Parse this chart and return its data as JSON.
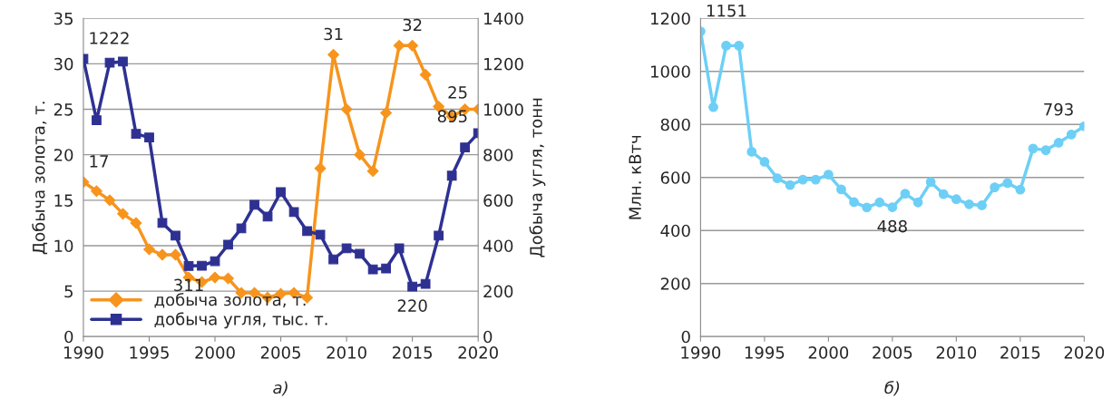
{
  "chart_data": [
    {
      "type": "line",
      "x": [
        1990,
        1991,
        1992,
        1993,
        1994,
        1995,
        1996,
        1997,
        1998,
        1999,
        2000,
        2001,
        2002,
        2003,
        2004,
        2005,
        2006,
        2007,
        2008,
        2009,
        2010,
        2011,
        2012,
        2013,
        2014,
        2015,
        2016,
        2017,
        2018,
        2019,
        2020
      ],
      "series": [
        {
          "name": "добыча золота, т.",
          "color": "#f7941d",
          "marker": "diamond",
          "values": [
            17,
            16,
            15,
            13.5,
            12.5,
            9.6,
            9,
            9,
            6.5,
            6,
            6.5,
            6.4,
            4.8,
            4.8,
            4.3,
            4.7,
            4.8,
            4.3,
            18.5,
            31,
            25,
            20,
            18.2,
            24.6,
            32,
            32,
            28.8,
            25.3,
            24.2,
            25,
            25
          ],
          "value_labels": [
            "17",
            null,
            null,
            null,
            null,
            null,
            null,
            null,
            null,
            null,
            null,
            null,
            null,
            null,
            null,
            null,
            null,
            null,
            null,
            "31",
            null,
            null,
            null,
            null,
            null,
            "32",
            null,
            null,
            null,
            null,
            "25"
          ]
        },
        {
          "name": "добыча угля, тыс. т.",
          "color": "#2e3192",
          "marker": "square",
          "axis": "y2",
          "values": [
            1222,
            952,
            1205,
            1210,
            892,
            876,
            500,
            444,
            311,
            312,
            332,
            404,
            476,
            580,
            528,
            636,
            548,
            464,
            448,
            340,
            388,
            364,
            296,
            300,
            388,
            220,
            232,
            444,
            708,
            832,
            895
          ],
          "value_labels": [
            "1222",
            null,
            null,
            null,
            null,
            null,
            null,
            null,
            "311",
            null,
            null,
            null,
            null,
            null,
            null,
            null,
            null,
            null,
            null,
            null,
            null,
            null,
            null,
            null,
            null,
            "220",
            null,
            null,
            null,
            null,
            "895"
          ]
        }
      ],
      "ylabel": "Добыча золота, т.",
      "y2label": "Добыча угля, тонн",
      "xlim": [
        1990,
        2020
      ],
      "xticks": [
        1990,
        1995,
        2000,
        2005,
        2010,
        2015,
        2020
      ],
      "ylim": [
        0,
        35
      ],
      "yticks": [
        0,
        5,
        10,
        15,
        20,
        25,
        30,
        35
      ],
      "y2lim": [
        0,
        1400
      ],
      "y2ticks": [
        0,
        200,
        400,
        600,
        800,
        1000,
        1200,
        1400
      ],
      "grid": "y",
      "legend": "bottom left",
      "line_style": "solid",
      "annotations": [
        "а)"
      ]
    },
    {
      "type": "line",
      "x": [
        1990,
        1991,
        1992,
        1993,
        1994,
        1995,
        1996,
        1997,
        1998,
        1999,
        2000,
        2001,
        2002,
        2003,
        2004,
        2005,
        2006,
        2007,
        2008,
        2009,
        2010,
        2011,
        2012,
        2013,
        2014,
        2015,
        2016,
        2017,
        2018,
        2019,
        2020
      ],
      "series": [
        {
          "color": "#6dcff6",
          "marker": "circle",
          "values": [
            1151,
            865,
            1097,
            1097,
            697,
            659,
            597,
            571,
            592,
            592,
            611,
            555,
            507,
            487,
            506,
            488,
            539,
            506,
            583,
            537,
            518,
            499,
            495,
            563,
            579,
            554,
            709,
            703,
            731,
            762,
            793
          ],
          "value_labels": [
            "1151",
            null,
            null,
            null,
            null,
            null,
            null,
            null,
            null,
            null,
            null,
            null,
            null,
            null,
            null,
            "488",
            null,
            null,
            null,
            null,
            null,
            null,
            null,
            null,
            null,
            null,
            null,
            null,
            null,
            null,
            "793"
          ]
        }
      ],
      "ylabel": "Млн. кВтч",
      "xlim": [
        1990,
        2020
      ],
      "xticks": [
        1990,
        1995,
        2000,
        2005,
        2010,
        2015,
        2020
      ],
      "ylim": [
        0,
        1200
      ],
      "yticks": [
        0,
        200,
        400,
        600,
        800,
        1000,
        1200
      ],
      "grid": "y",
      "line_style": "solid",
      "annotations": [
        "б)"
      ]
    }
  ]
}
